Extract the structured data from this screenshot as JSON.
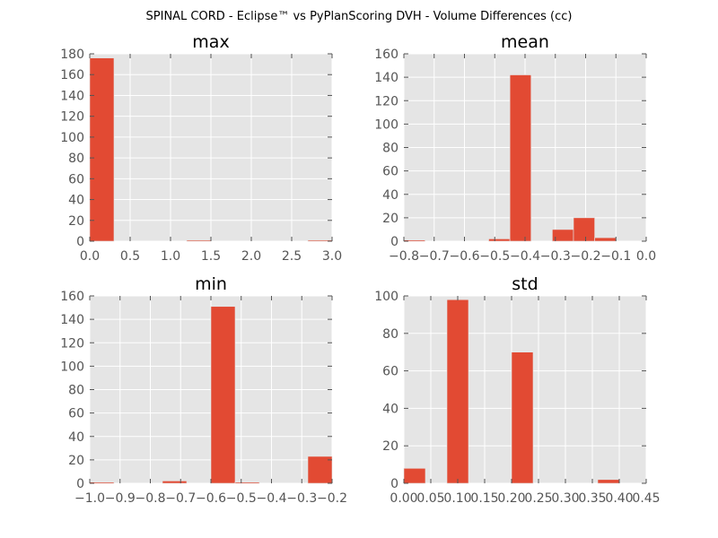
{
  "figure": {
    "title": "SPINAL CORD - Eclipse™ vs PyPlanScoring DVH - Volume Differences (cc)"
  },
  "chart_data": [
    {
      "type": "bar",
      "title": "max",
      "xlabel": "",
      "ylabel": "",
      "xlim": [
        0.0,
        3.0
      ],
      "ylim": [
        0,
        180
      ],
      "grid": true,
      "xticks": [
        "0.0",
        "0.5",
        "1.0",
        "1.5",
        "2.0",
        "2.5",
        "3.0"
      ],
      "yticks": [
        "0",
        "20",
        "40",
        "60",
        "80",
        "100",
        "120",
        "140",
        "160",
        "180"
      ],
      "bins": [
        [
          0.0,
          0.3
        ],
        [
          0.3,
          0.6
        ],
        [
          0.6,
          0.9
        ],
        [
          0.9,
          1.2
        ],
        [
          1.2,
          1.5
        ],
        [
          1.5,
          1.8
        ],
        [
          1.8,
          2.1
        ],
        [
          2.1,
          2.4
        ],
        [
          2.4,
          2.7
        ],
        [
          2.7,
          3.0
        ]
      ],
      "values": [
        176,
        0,
        0,
        0,
        1,
        0,
        0,
        0,
        0,
        1
      ]
    },
    {
      "type": "bar",
      "title": "mean",
      "xlabel": "",
      "ylabel": "",
      "xlim": [
        -0.8,
        0.0
      ],
      "ylim": [
        0,
        160
      ],
      "grid": true,
      "xticks": [
        "−0.8",
        "−0.7",
        "−0.6",
        "−0.5",
        "−0.4",
        "−0.3",
        "−0.2",
        "−0.1",
        "0.0"
      ],
      "yticks": [
        "0",
        "20",
        "40",
        "60",
        "80",
        "100",
        "120",
        "140",
        "160"
      ],
      "bins": [
        [
          -0.8,
          -0.73
        ],
        [
          -0.73,
          -0.66
        ],
        [
          -0.66,
          -0.59
        ],
        [
          -0.59,
          -0.52
        ],
        [
          -0.52,
          -0.45
        ],
        [
          -0.45,
          -0.38
        ],
        [
          -0.38,
          -0.31
        ],
        [
          -0.31,
          -0.24
        ],
        [
          -0.24,
          -0.17
        ],
        [
          -0.17,
          -0.1
        ]
      ],
      "values": [
        1,
        0,
        0,
        0,
        2,
        142,
        0,
        10,
        20,
        3
      ]
    },
    {
      "type": "bar",
      "title": "min",
      "xlabel": "",
      "ylabel": "",
      "xlim": [
        -1.0,
        -0.2
      ],
      "ylim": [
        0,
        160
      ],
      "grid": true,
      "xticks": [
        "−1.0",
        "−0.9",
        "−0.8",
        "−0.7",
        "−0.6",
        "−0.5",
        "−0.4",
        "−0.3",
        "−0.2"
      ],
      "yticks": [
        "0",
        "20",
        "40",
        "60",
        "80",
        "100",
        "120",
        "140",
        "160"
      ],
      "bins": [
        [
          -1.0,
          -0.92
        ],
        [
          -0.92,
          -0.84
        ],
        [
          -0.84,
          -0.76
        ],
        [
          -0.76,
          -0.68
        ],
        [
          -0.68,
          -0.6
        ],
        [
          -0.6,
          -0.52
        ],
        [
          -0.52,
          -0.44
        ],
        [
          -0.44,
          -0.36
        ],
        [
          -0.36,
          -0.28
        ],
        [
          -0.28,
          -0.2
        ]
      ],
      "values": [
        1,
        0,
        0,
        2,
        0,
        151,
        1,
        0,
        0,
        23
      ]
    },
    {
      "type": "bar",
      "title": "std",
      "xlabel": "",
      "ylabel": "",
      "xlim": [
        0.0,
        0.45
      ],
      "ylim": [
        0,
        100
      ],
      "grid": true,
      "xticks": [
        "0.00",
        "0.05",
        "0.10",
        "0.15",
        "0.20",
        "0.25",
        "0.30",
        "0.35",
        "0.40",
        "0.45"
      ],
      "yticks": [
        "0",
        "20",
        "40",
        "60",
        "80",
        "100"
      ],
      "bins": [
        [
          0.0,
          0.04
        ],
        [
          0.04,
          0.08
        ],
        [
          0.08,
          0.12
        ],
        [
          0.12,
          0.16
        ],
        [
          0.16,
          0.2
        ],
        [
          0.2,
          0.24
        ],
        [
          0.24,
          0.28
        ],
        [
          0.28,
          0.32
        ],
        [
          0.32,
          0.36
        ],
        [
          0.36,
          0.4
        ]
      ],
      "values": [
        8,
        0,
        98,
        0,
        0,
        70,
        0,
        0,
        0,
        2
      ]
    }
  ]
}
